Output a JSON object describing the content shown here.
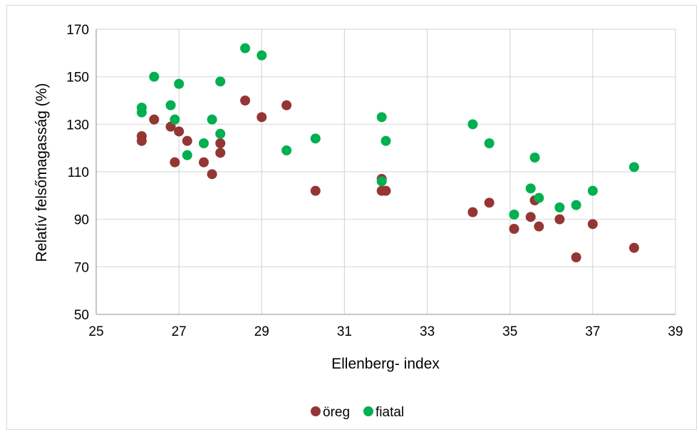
{
  "chart_data": {
    "type": "scatter",
    "title": "",
    "xlabel": "Ellenberg- index",
    "ylabel": "Relatív felsőmagasság (%)",
    "xlim": [
      25,
      39
    ],
    "ylim": [
      50,
      170
    ],
    "x_ticks": [
      25,
      27,
      29,
      31,
      33,
      35,
      37,
      39
    ],
    "y_ticks": [
      50,
      70,
      90,
      110,
      130,
      150,
      170
    ],
    "grid": true,
    "legend_position": "bottom",
    "series": [
      {
        "name": "öreg",
        "color": "#943634",
        "points": [
          [
            26.1,
            125
          ],
          [
            26.1,
            123
          ],
          [
            26.4,
            132
          ],
          [
            26.8,
            129
          ],
          [
            26.9,
            114
          ],
          [
            27.0,
            127
          ],
          [
            27.2,
            123
          ],
          [
            27.6,
            114
          ],
          [
            27.8,
            109
          ],
          [
            28.0,
            122
          ],
          [
            28.0,
            118
          ],
          [
            28.6,
            140
          ],
          [
            29.0,
            133
          ],
          [
            29.6,
            138
          ],
          [
            30.3,
            102
          ],
          [
            31.9,
            107
          ],
          [
            31.9,
            102
          ],
          [
            32.0,
            102
          ],
          [
            34.1,
            93
          ],
          [
            34.5,
            97
          ],
          [
            35.1,
            86
          ],
          [
            35.5,
            91
          ],
          [
            35.6,
            98
          ],
          [
            35.7,
            87
          ],
          [
            36.2,
            90
          ],
          [
            36.6,
            74
          ],
          [
            37.0,
            88
          ],
          [
            38.0,
            78
          ]
        ]
      },
      {
        "name": "fiatal",
        "color": "#00b050",
        "points": [
          [
            26.1,
            137
          ],
          [
            26.1,
            135
          ],
          [
            26.4,
            150
          ],
          [
            26.8,
            138
          ],
          [
            26.9,
            132
          ],
          [
            27.0,
            147
          ],
          [
            27.2,
            117
          ],
          [
            27.6,
            122
          ],
          [
            27.8,
            132
          ],
          [
            28.0,
            148
          ],
          [
            28.0,
            126
          ],
          [
            28.6,
            162
          ],
          [
            29.0,
            159
          ],
          [
            29.6,
            119
          ],
          [
            30.3,
            124
          ],
          [
            31.9,
            133
          ],
          [
            31.9,
            106
          ],
          [
            32.0,
            123
          ],
          [
            34.1,
            130
          ],
          [
            34.5,
            122
          ],
          [
            35.1,
            92
          ],
          [
            35.5,
            103
          ],
          [
            35.6,
            116
          ],
          [
            35.7,
            99
          ],
          [
            36.2,
            95
          ],
          [
            36.6,
            96
          ],
          [
            37.0,
            102
          ],
          [
            38.0,
            112
          ]
        ]
      }
    ]
  }
}
